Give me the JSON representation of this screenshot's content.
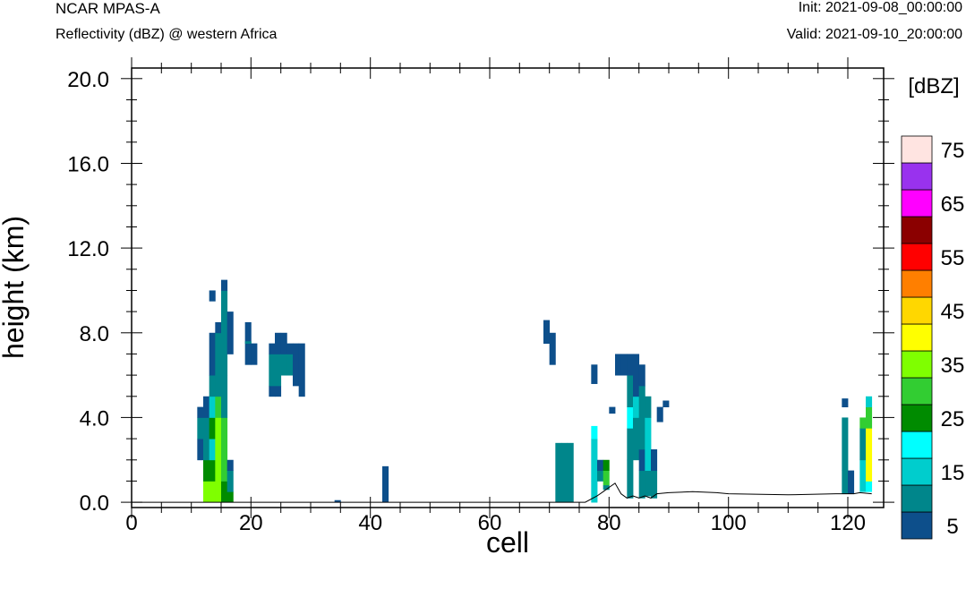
{
  "header": {
    "model": "NCAR MPAS-A",
    "field": "Reflectivity (dBZ) @ western Africa",
    "init": "Init: 2021-09-08_00:00:00",
    "valid": "Valid: 2021-09-10_20:00:00"
  },
  "chart_data": {
    "type": "heatmap",
    "xlabel": "cell",
    "ylabel": "height (km)",
    "xlim": [
      0,
      126
    ],
    "ylim": [
      -0.25,
      20.5
    ],
    "x_ticks": [
      "0",
      "20",
      "40",
      "60",
      "80",
      "100",
      "120"
    ],
    "y_ticks": [
      "0.0",
      "4.0",
      "8.0",
      "12.0",
      "16.0",
      "20.0"
    ],
    "colorbar": {
      "units": "[dBZ]",
      "levels": [
        5,
        10,
        15,
        20,
        25,
        30,
        35,
        40,
        45,
        50,
        55,
        60,
        65,
        70,
        75
      ],
      "labels": [
        "5",
        "15",
        "25",
        "35",
        "45",
        "55",
        "65",
        "75"
      ],
      "colors": [
        "#0d4f8b",
        "#00868b",
        "#00cdcd",
        "#00ffff",
        "#008b00",
        "#32cd32",
        "#7fff00",
        "#ffff00",
        "#ffd700",
        "#ff7f00",
        "#ff0000",
        "#8b0000",
        "#ff00ff",
        "#9932ee",
        "#ffe4e1"
      ]
    },
    "terrain": [
      [
        0,
        0
      ],
      [
        60,
        0
      ],
      [
        76,
        0
      ],
      [
        78,
        0.3
      ],
      [
        79,
        0.5
      ],
      [
        80,
        0.7
      ],
      [
        81,
        0.9
      ],
      [
        82,
        0.4
      ],
      [
        83,
        0.2
      ],
      [
        84,
        0.3
      ],
      [
        85,
        0.2
      ],
      [
        86,
        0.3
      ],
      [
        87,
        0.2
      ],
      [
        88,
        0.4
      ],
      [
        90,
        0.45
      ],
      [
        94,
        0.5
      ],
      [
        98,
        0.45
      ],
      [
        100,
        0.4
      ],
      [
        110,
        0.35
      ],
      [
        118,
        0.4
      ],
      [
        121,
        0.4
      ],
      [
        122,
        0.45
      ],
      [
        124,
        0.4
      ]
    ],
    "cells": [
      [
        11,
        2,
        3,
        1
      ],
      [
        11,
        3,
        4,
        2
      ],
      [
        11,
        4,
        4.5,
        1
      ],
      [
        12,
        0,
        1,
        7
      ],
      [
        12,
        1,
        2,
        5
      ],
      [
        12,
        2,
        4,
        2
      ],
      [
        12,
        4,
        5,
        1
      ],
      [
        13,
        0,
        1,
        7
      ],
      [
        13,
        1,
        2,
        5
      ],
      [
        13,
        2,
        3,
        3
      ],
      [
        13,
        3,
        4,
        5
      ],
      [
        13,
        4,
        5,
        3
      ],
      [
        13,
        5,
        6,
        2
      ],
      [
        13,
        6,
        8,
        1
      ],
      [
        13,
        9.5,
        10,
        1
      ],
      [
        14,
        0,
        4,
        7
      ],
      [
        14,
        4,
        5,
        6
      ],
      [
        14,
        5,
        6,
        2
      ],
      [
        14,
        6,
        8,
        2
      ],
      [
        14,
        8,
        8.5,
        1
      ],
      [
        15,
        0,
        1,
        5
      ],
      [
        15,
        1,
        4,
        6
      ],
      [
        15,
        4,
        6,
        2
      ],
      [
        15,
        6,
        9,
        2
      ],
      [
        15,
        9,
        10,
        2
      ],
      [
        15,
        10,
        10.5,
        1
      ],
      [
        16,
        0,
        0.5,
        5
      ],
      [
        16,
        0.5,
        1.5,
        2
      ],
      [
        16,
        1.5,
        2,
        1
      ],
      [
        16,
        7,
        9,
        1
      ],
      [
        19,
        6.5,
        8.5,
        1
      ],
      [
        19,
        7.5,
        7.6,
        2
      ],
      [
        20,
        6.5,
        7.5,
        1
      ],
      [
        23,
        5,
        5.5,
        1
      ],
      [
        23,
        5.5,
        7,
        2
      ],
      [
        23,
        7,
        7.5,
        1
      ],
      [
        24,
        5,
        5.5,
        1
      ],
      [
        24,
        5.5,
        7,
        2
      ],
      [
        24,
        7,
        8,
        1
      ],
      [
        25,
        6,
        7,
        2
      ],
      [
        25,
        7,
        8,
        1
      ],
      [
        26,
        6,
        7,
        2
      ],
      [
        26,
        7,
        7.5,
        1
      ],
      [
        27,
        5.5,
        7,
        1
      ],
      [
        27,
        7,
        7.5,
        1
      ],
      [
        28,
        5,
        7.5,
        1
      ],
      [
        34,
        0,
        0.1,
        1
      ],
      [
        42,
        0,
        1.7,
        1
      ],
      [
        69,
        7.5,
        8.6,
        1
      ],
      [
        70,
        6.5,
        8,
        1
      ],
      [
        71,
        0,
        2.8,
        2
      ],
      [
        72,
        0,
        2.8,
        2
      ],
      [
        73,
        0,
        2.8,
        2
      ],
      [
        77,
        0,
        1,
        3
      ],
      [
        77,
        1,
        3,
        3
      ],
      [
        77,
        3,
        3.6,
        4
      ],
      [
        77,
        5.6,
        6.5,
        1
      ],
      [
        78,
        1,
        1.5,
        2
      ],
      [
        78,
        1.5,
        2,
        1
      ],
      [
        79,
        0.8,
        1.5,
        6
      ],
      [
        79,
        1.5,
        2,
        5
      ],
      [
        79,
        0.6,
        0.8,
        2
      ],
      [
        80,
        4.2,
        4.5,
        1
      ],
      [
        81,
        6,
        7,
        1
      ],
      [
        82,
        6,
        7,
        1
      ],
      [
        83,
        0.2,
        2,
        2
      ],
      [
        83,
        2,
        3.5,
        2
      ],
      [
        83,
        3.5,
        4.5,
        4
      ],
      [
        83,
        4.5,
        6,
        2
      ],
      [
        83,
        6,
        7,
        1
      ],
      [
        84,
        2,
        4,
        2
      ],
      [
        84,
        4,
        5,
        3
      ],
      [
        84,
        5,
        7,
        1
      ],
      [
        85,
        0.2,
        1.5,
        2
      ],
      [
        85,
        1.5,
        2.5,
        1
      ],
      [
        85,
        2.5,
        4,
        2
      ],
      [
        85,
        4,
        5.5,
        2
      ],
      [
        85,
        5.5,
        6.5,
        1
      ],
      [
        86,
        0.3,
        1.5,
        2
      ],
      [
        86,
        1.5,
        4,
        3
      ],
      [
        86,
        4,
        5,
        2
      ],
      [
        87,
        0.2,
        1.5,
        2
      ],
      [
        87,
        1.5,
        2.5,
        1
      ],
      [
        88,
        3.8,
        4.5,
        1
      ],
      [
        89,
        4.5,
        4.8,
        1
      ],
      [
        119,
        0.4,
        1.5,
        2
      ],
      [
        119,
        1.5,
        4,
        2
      ],
      [
        119,
        4.5,
        4.9,
        1
      ],
      [
        120,
        0.4,
        1.5,
        1
      ],
      [
        122,
        0.5,
        2,
        3
      ],
      [
        122,
        2,
        3.5,
        2
      ],
      [
        122,
        3.5,
        4,
        6
      ],
      [
        123,
        0.5,
        1,
        4
      ],
      [
        123,
        1,
        3.5,
        8
      ],
      [
        123,
        3.5,
        4.5,
        6
      ],
      [
        123,
        4.5,
        5,
        3
      ]
    ]
  }
}
